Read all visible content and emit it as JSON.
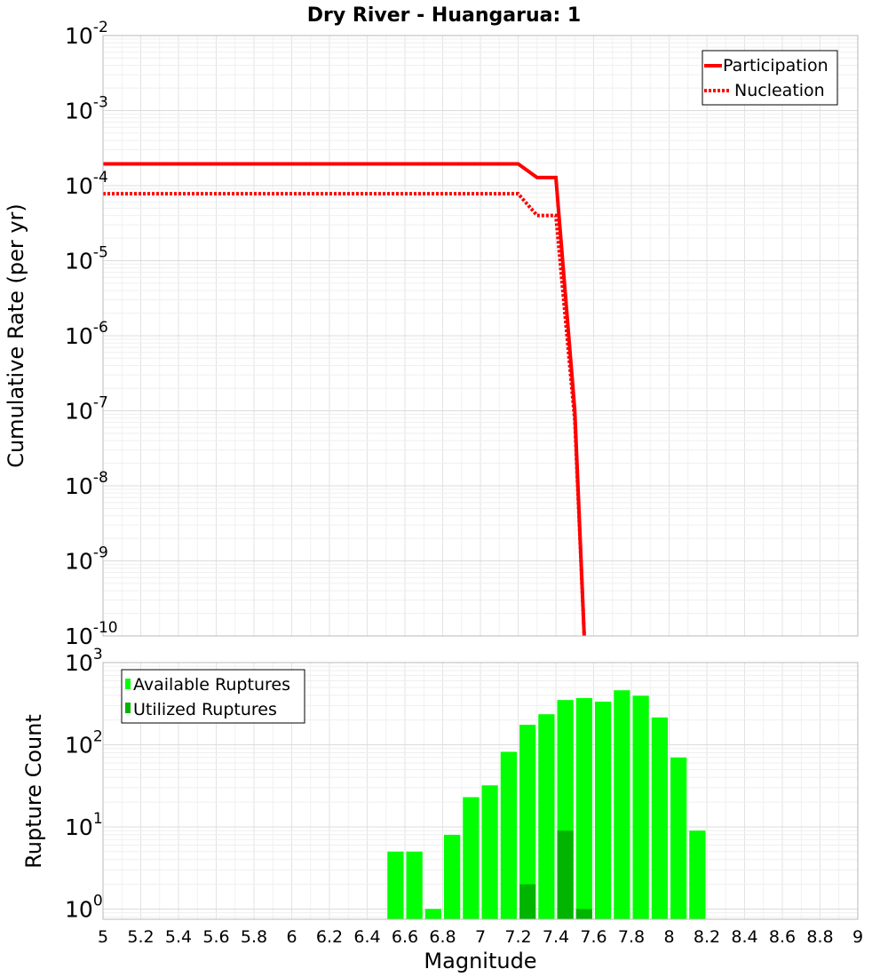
{
  "title": "Dry River - Huangarua: 1",
  "xlabel": "Magnitude",
  "chart_data": [
    {
      "type": "line",
      "ylabel": "Cumulative Rate (per yr)",
      "yscale": "log",
      "ylim": [
        1e-10,
        0.01
      ],
      "xlim": [
        5,
        9
      ],
      "grid": true,
      "legend_position": "top-right",
      "series": [
        {
          "name": "Participation",
          "style": "solid",
          "color": "#ff0000",
          "x": [
            5.0,
            7.2,
            7.3,
            7.4,
            7.5,
            7.55
          ],
          "y": [
            0.000195,
            0.000195,
            0.000128,
            0.000128,
            1e-07,
            1e-10
          ]
        },
        {
          "name": "Nucleation",
          "style": "dotted",
          "color": "#ff0000",
          "x": [
            5.0,
            7.2,
            7.3,
            7.4,
            7.5,
            7.55
          ],
          "y": [
            7.8e-05,
            7.8e-05,
            4e-05,
            4e-05,
            7.5e-08,
            1e-10
          ]
        }
      ]
    },
    {
      "type": "bar",
      "ylabel": "Rupture Count",
      "yscale": "log",
      "ylim": [
        0.75,
        1000
      ],
      "xlim": [
        5,
        9
      ],
      "grid": true,
      "legend_position": "top-left",
      "bar_width": 0.1,
      "series": [
        {
          "name": "Available Ruptures",
          "color": "#00ff00",
          "x": [
            6.55,
            6.65,
            6.75,
            6.85,
            6.95,
            7.05,
            7.15,
            7.25,
            7.35,
            7.45,
            7.55,
            7.65,
            7.75,
            7.85,
            7.95,
            8.05,
            8.15
          ],
          "values": [
            5,
            5,
            1,
            8,
            23,
            32,
            82,
            175,
            235,
            350,
            370,
            335,
            460,
            395,
            215,
            70,
            9
          ]
        },
        {
          "name": "Utilized Ruptures",
          "color": "#00b400",
          "x": [
            7.25,
            7.45,
            7.55
          ],
          "values": [
            2,
            9,
            1
          ]
        }
      ]
    }
  ],
  "x_ticks": [
    "5",
    "5.2",
    "5.4",
    "5.6",
    "5.8",
    "6",
    "6.2",
    "6.4",
    "6.6",
    "6.8",
    "7",
    "7.2",
    "7.4",
    "7.6",
    "7.8",
    "8",
    "8.2",
    "8.4",
    "8.6",
    "8.8",
    "9"
  ],
  "top_y_ticks": [
    {
      "base": "10",
      "exp": "-10"
    },
    {
      "base": "10",
      "exp": "-9"
    },
    {
      "base": "10",
      "exp": "-8"
    },
    {
      "base": "10",
      "exp": "-7"
    },
    {
      "base": "10",
      "exp": "-6"
    },
    {
      "base": "10",
      "exp": "-5"
    },
    {
      "base": "10",
      "exp": "-4"
    },
    {
      "base": "10",
      "exp": "-3"
    },
    {
      "base": "10",
      "exp": "-2"
    }
  ],
  "bottom_y_ticks": [
    {
      "base": "10",
      "exp": "0"
    },
    {
      "base": "10",
      "exp": "1"
    },
    {
      "base": "10",
      "exp": "2"
    },
    {
      "base": "10",
      "exp": "3"
    }
  ]
}
